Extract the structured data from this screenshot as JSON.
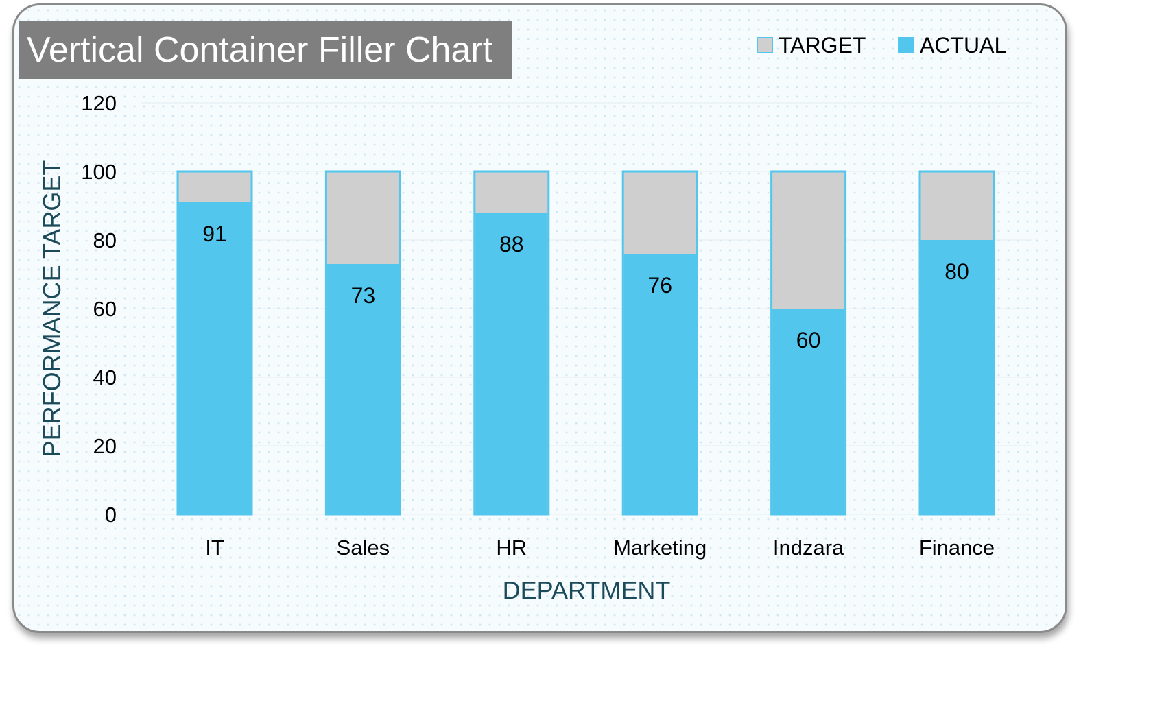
{
  "colors": {
    "target": "#cfcfcf",
    "actual": "#52c6ed",
    "target_border": "#52c6ed",
    "title_bg": "#7f7f7f",
    "axis_title": "#1b4a5a"
  },
  "chart_data": {
    "type": "bar",
    "title": "Vertical Container Filler Chart",
    "xlabel": "DEPARTMENT",
    "ylabel": "PERFORMANCE TARGET",
    "categories": [
      "IT",
      "Sales",
      "HR",
      "Marketing",
      "Indzara",
      "Finance"
    ],
    "series": [
      {
        "name": "TARGET",
        "values": [
          100,
          100,
          100,
          100,
          100,
          100
        ]
      },
      {
        "name": "ACTUAL",
        "values": [
          91,
          73,
          88,
          76,
          60,
          80
        ]
      }
    ],
    "ylim": [
      0,
      120
    ],
    "yticks": [
      0,
      20,
      40,
      60,
      80,
      100,
      120
    ],
    "data_labels": [
      "91",
      "73",
      "88",
      "76",
      "60",
      "80"
    ],
    "legend_position": "top-right",
    "grid": false
  }
}
